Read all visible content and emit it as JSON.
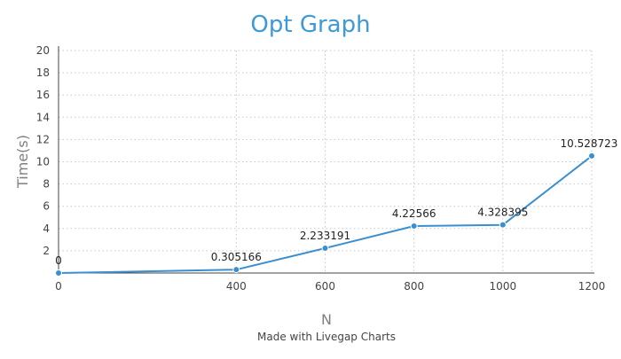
{
  "chart_data": {
    "type": "line",
    "title": "Opt Graph",
    "xlabel": "N",
    "ylabel": "Time(s)",
    "xlim": [
      0,
      1200
    ],
    "ylim": [
      0,
      20
    ],
    "xticks": [
      0,
      400,
      600,
      800,
      1000,
      1200
    ],
    "yticks": [
      2,
      4,
      6,
      8,
      10,
      12,
      14,
      16,
      18,
      20
    ],
    "grid": true,
    "series": [
      {
        "x": [
          0,
          400,
          600,
          800,
          1000,
          1200
        ],
        "values": [
          0,
          0.305166,
          2.233191,
          4.22566,
          4.328395,
          10.528723
        ],
        "labels": [
          "0",
          "0.305166",
          "2.233191",
          "4.22566",
          "4.328395",
          "10.528723"
        ]
      }
    ]
  },
  "colors": {
    "title": "#3d9ad6",
    "line": "#3a8fd0",
    "marker": "#3a8fd0"
  },
  "footer": "Made with Livegap Charts"
}
